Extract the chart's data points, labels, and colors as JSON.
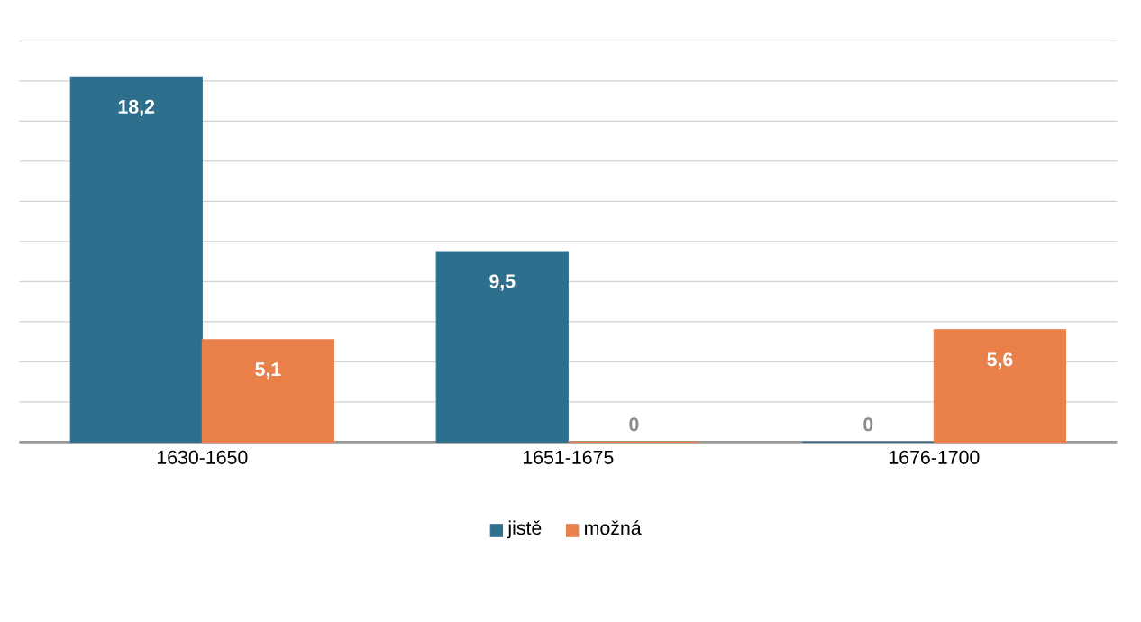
{
  "chart_data": {
    "type": "bar",
    "categories": [
      "1630-1650",
      "1651-1675",
      "1676-1700"
    ],
    "series": [
      {
        "name": "jistě",
        "color": "#2e6f8e",
        "values": [
          18.2,
          9.5,
          0
        ],
        "value_labels": [
          "18,2",
          "9,5",
          "0"
        ]
      },
      {
        "name": "možná",
        "color": "#e9804a",
        "values": [
          5.1,
          0,
          5.6
        ],
        "value_labels": [
          "5,1",
          "0",
          "5,6"
        ]
      }
    ],
    "ylim": [
      0,
      20
    ],
    "yticks": [
      {
        "value": 0,
        "label": null
      },
      {
        "value": 2,
        "label": null
      },
      {
        "value": 4,
        "label": null
      },
      {
        "value": 6,
        "label": null
      },
      {
        "value": 8,
        "label": null
      },
      {
        "value": 10,
        "label": null
      },
      {
        "value": 12,
        "label": null
      },
      {
        "value": 14,
        "label": null
      },
      {
        "value": 16,
        "label": null
      },
      {
        "value": 18,
        "label": null
      },
      {
        "value": 20,
        "label": null
      }
    ],
    "tick_labels": "x",
    "grid": "y",
    "legend": "bottom"
  }
}
